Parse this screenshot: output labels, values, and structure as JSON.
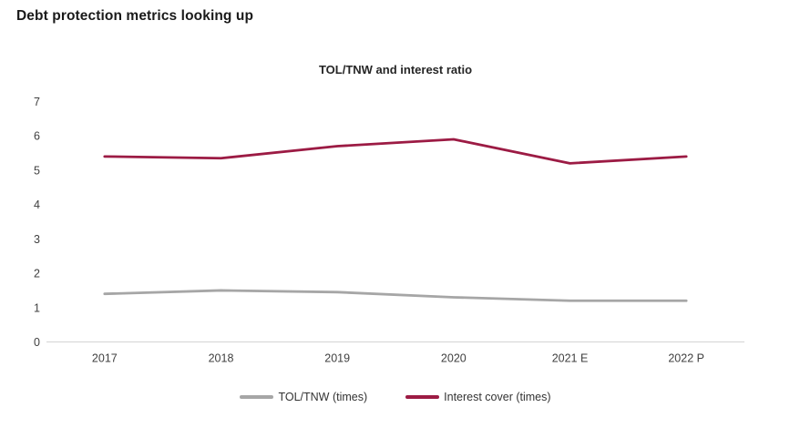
{
  "page": {
    "background": "#ffffff"
  },
  "header": {
    "title": "Debt protection metrics looking up"
  },
  "chart_data": {
    "type": "line",
    "title": "TOL/TNW and interest ratio",
    "categories": [
      "2017",
      "2018",
      "2019",
      "2020",
      "2021 E",
      "2022 P"
    ],
    "series": [
      {
        "name": "TOL/TNW (times)",
        "color": "#a6a6a6",
        "values": [
          1.4,
          1.5,
          1.45,
          1.3,
          1.2,
          1.2
        ]
      },
      {
        "name": "Interest cover (times)",
        "color": "#9c1b44",
        "values": [
          5.4,
          5.35,
          5.7,
          5.9,
          5.2,
          5.4
        ]
      }
    ],
    "xlabel": "",
    "ylabel": "",
    "ylim": [
      0,
      7
    ],
    "yticks": [
      0,
      1,
      2,
      3,
      4,
      5,
      6,
      7
    ],
    "grid": false,
    "legend_position": "bottom",
    "colors": {
      "axis_line": "#d9d9d9",
      "tick_text": "#404040"
    }
  }
}
